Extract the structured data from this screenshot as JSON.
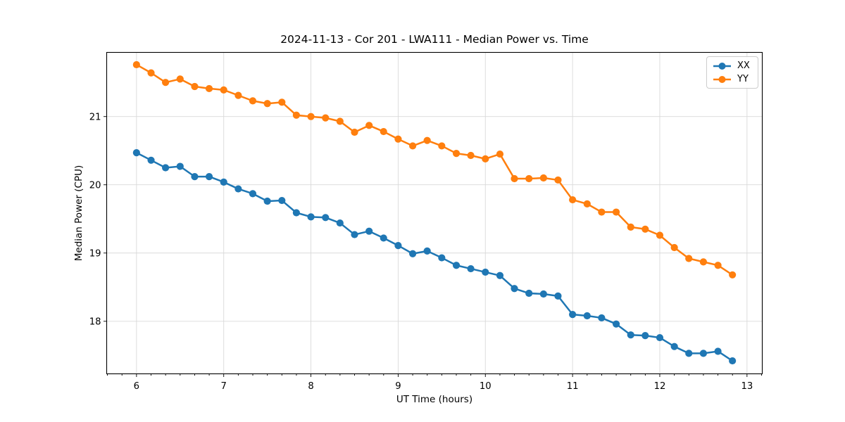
{
  "figure": {
    "title": "2024-11-13 - Cor 201 - LWA111 - Median Power vs. Time"
  },
  "chart_data": {
    "type": "line",
    "title": "2024-11-13 - Cor 201 - LWA111 - Median Power vs. Time",
    "xlabel": "UT Time (hours)",
    "ylabel": "Median Power (CPU)",
    "xlim": [
      5.658,
      13.175
    ],
    "ylim": [
      17.23,
      21.94
    ],
    "x_ticks": [
      6,
      7,
      8,
      9,
      10,
      11,
      12,
      13
    ],
    "y_ticks": [
      18,
      19,
      20,
      21
    ],
    "x_minor_tick_step": 0.16667,
    "grid": true,
    "grid_color": "#d9d9d9",
    "legend_position": "upper right",
    "marker": "circle",
    "x": [
      6.0,
      6.167,
      6.333,
      6.5,
      6.667,
      6.833,
      7.0,
      7.167,
      7.333,
      7.5,
      7.667,
      7.833,
      8.0,
      8.167,
      8.333,
      8.5,
      8.667,
      8.833,
      9.0,
      9.167,
      9.333,
      9.5,
      9.667,
      9.833,
      10.0,
      10.167,
      10.333,
      10.5,
      10.667,
      10.833,
      11.0,
      11.167,
      11.333,
      11.5,
      11.667,
      11.833,
      12.0,
      12.167,
      12.333,
      12.5,
      12.667,
      12.833
    ],
    "series": [
      {
        "name": "XX",
        "color": "#1f77b4",
        "values": [
          20.47,
          20.36,
          20.25,
          20.27,
          20.12,
          20.12,
          20.04,
          19.94,
          19.87,
          19.76,
          19.77,
          19.59,
          19.53,
          19.52,
          19.44,
          19.27,
          19.32,
          19.22,
          19.11,
          18.99,
          19.03,
          18.93,
          18.82,
          18.77,
          18.72,
          18.67,
          18.48,
          18.41,
          18.4,
          18.37,
          18.1,
          18.08,
          18.05,
          17.96,
          17.8,
          17.79,
          17.76,
          17.63,
          17.53,
          17.53,
          17.56,
          17.42
        ]
      },
      {
        "name": "YY",
        "color": "#ff7f0e",
        "values": [
          21.76,
          21.64,
          21.5,
          21.55,
          21.44,
          21.41,
          21.39,
          21.31,
          21.23,
          21.19,
          21.21,
          21.02,
          21.0,
          20.98,
          20.93,
          20.77,
          20.87,
          20.78,
          20.67,
          20.57,
          20.65,
          20.57,
          20.46,
          20.43,
          20.38,
          20.45,
          20.09,
          20.09,
          20.1,
          20.07,
          19.78,
          19.72,
          19.6,
          19.6,
          19.38,
          19.35,
          19.26,
          19.08,
          18.92,
          18.87,
          18.82,
          18.68
        ]
      }
    ]
  }
}
